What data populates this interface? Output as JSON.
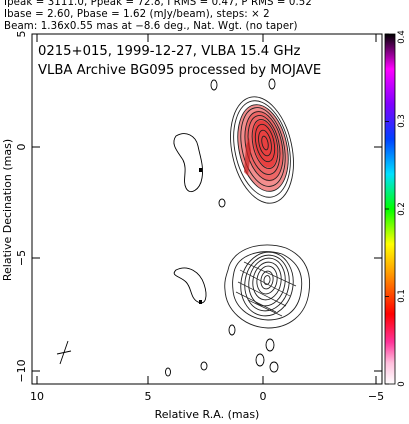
{
  "header": {
    "line1": "Ipeak = 3111.0, Ppeak = 72.8, I RMS = 0.47, P RMS = 0.52",
    "line2": "Ibase = 2.60, Pbase = 1.62 (mJy/beam), steps: × 2",
    "line3": "Beam: 1.36x0.55 mas at −8.6 deg., Nat. Wgt. (no taper)"
  },
  "chart_data": {
    "type": "heatmap",
    "title": "0215+015, 1999-12-27, VLBA 15.4 GHz",
    "subtitle": "VLBA Archive BG095 processed by MOJAVE",
    "xlabel": "Relative R.A. (mas)",
    "ylabel": "Relative Decination (mas)",
    "xlim": [
      10,
      -5
    ],
    "ylim": [
      -11,
      5
    ],
    "x_ticks": [
      "10",
      "5",
      "0",
      "−5"
    ],
    "y_ticks": [
      "5",
      "0",
      "−5",
      "−10"
    ],
    "colorbar": {
      "ticks": [
        "0",
        "0.1",
        "0.2",
        "0.3",
        "0.4"
      ],
      "range": [
        0,
        0.4
      ],
      "colors": [
        "#ffffff",
        "#ff66bb",
        "#ff0000",
        "#ffa000",
        "#ffff00",
        "#00ff00",
        "#00c8ff",
        "#0000ff",
        "#aa00ff",
        "#000000"
      ]
    },
    "features": {
      "core_component": {
        "ra": 0.0,
        "dec": 0.0,
        "fill": "#f06060"
      },
      "southern_component": {
        "ra": 0.0,
        "dec": -5.8
      }
    },
    "beam": {
      "ra": 8.8,
      "dec": -9.7,
      "major_mas": 1.36,
      "minor_mas": 0.55,
      "pa_deg": -8.6
    }
  }
}
